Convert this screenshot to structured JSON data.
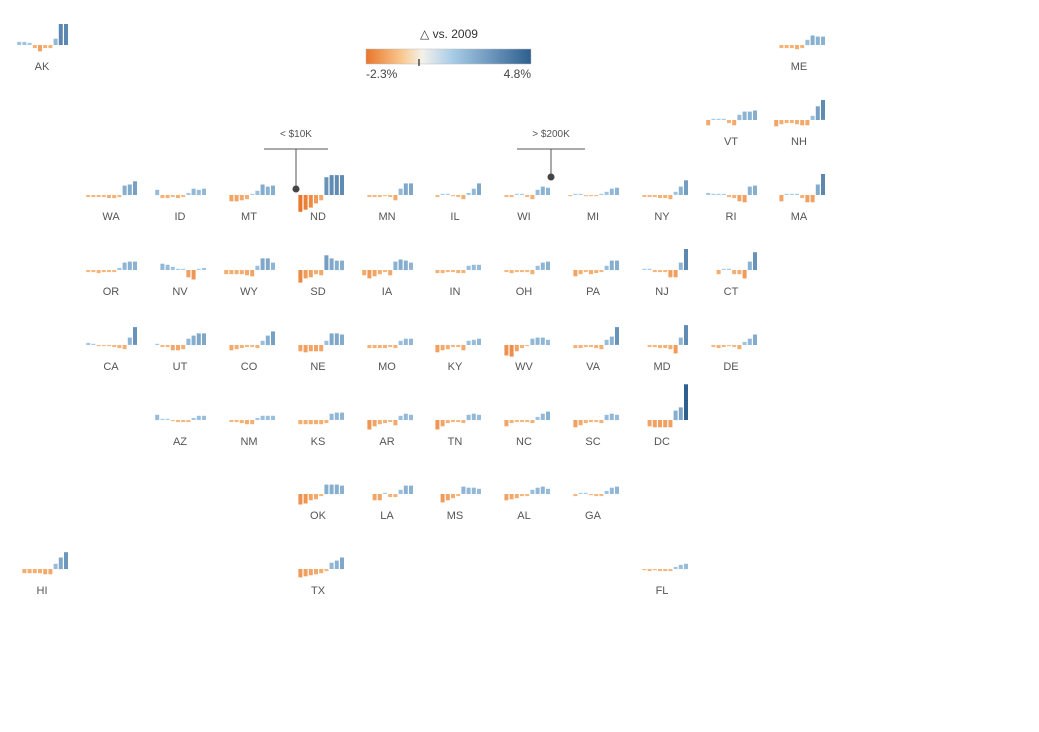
{
  "chart_data": {
    "type": "bar",
    "layout": "tile-grid-map-of-small-multiples",
    "legend": {
      "title": "△ vs. 2009",
      "min_label": "-2.3%",
      "max_label": "4.8%",
      "min": -2.3,
      "max": 4.8,
      "colors": {
        "neg_strong": "#e8762c",
        "neg_light": "#f7c088",
        "pos_light": "#a9cde8",
        "pos_strong": "#2e5f8f"
      },
      "placement": "top-center"
    },
    "annotations": [
      {
        "text": "< $10K",
        "state": "ND"
      },
      {
        "text": "> $200K",
        "state": "WI"
      }
    ],
    "states": [
      {
        "abbr": "AK",
        "values": [
          0.15,
          0.15,
          0.1,
          -0.15,
          -0.3,
          -0.15,
          -0.15,
          0.3,
          1.0,
          1.0
        ]
      },
      {
        "abbr": "ME",
        "values": [
          -0.15,
          -0.15,
          -0.15,
          -0.2,
          -0.15,
          0.25,
          0.45,
          0.4,
          0.4
        ]
      },
      {
        "abbr": "VT",
        "values": [
          -0.25,
          0,
          0,
          0,
          -0.15,
          -0.25,
          0.25,
          0.4,
          0.4,
          0.45
        ]
      },
      {
        "abbr": "NH",
        "values": [
          -0.3,
          -0.2,
          -0.15,
          -0.15,
          -0.2,
          -0.25,
          -0.25,
          0.2,
          0.65,
          0.95
        ]
      },
      {
        "abbr": "WA",
        "values": [
          -0.1,
          -0.1,
          -0.1,
          -0.1,
          -0.15,
          -0.15,
          -0.1,
          0.45,
          0.5,
          0.65
        ]
      },
      {
        "abbr": "ID",
        "values": [
          0.25,
          -0.15,
          -0.15,
          -0.1,
          -0.15,
          -0.1,
          0.1,
          0.3,
          0.25,
          0.3
        ]
      },
      {
        "abbr": "MT",
        "values": [
          -0.3,
          -0.3,
          -0.25,
          -0.2,
          0,
          0.2,
          0.5,
          0.4,
          0.45
        ]
      },
      {
        "abbr": "ND",
        "values": [
          -0.8,
          -0.7,
          -0.6,
          -0.4,
          -0.25,
          0.85,
          0.95,
          0.95,
          0.95
        ]
      },
      {
        "abbr": "MN",
        "values": [
          -0.1,
          -0.1,
          -0.1,
          -0.05,
          -0.1,
          -0.25,
          0.3,
          0.55,
          0.55
        ]
      },
      {
        "abbr": "IL",
        "values": [
          -0.1,
          0,
          0,
          -0.05,
          -0.1,
          -0.2,
          0.1,
          0.3,
          0.55
        ]
      },
      {
        "abbr": "WI",
        "values": [
          -0.1,
          -0.1,
          0,
          0,
          -0.1,
          -0.2,
          0.25,
          0.4,
          0.35
        ]
      },
      {
        "abbr": "MI",
        "values": [
          -0.05,
          0,
          0,
          -0.05,
          -0.05,
          -0.05,
          0,
          0.15,
          0.3,
          0.35
        ]
      },
      {
        "abbr": "NY",
        "values": [
          -0.1,
          -0.1,
          -0.1,
          -0.15,
          -0.15,
          -0.2,
          0.15,
          0.4,
          0.7
        ]
      },
      {
        "abbr": "RI",
        "values": [
          0.1,
          0.05,
          0,
          0,
          -0.1,
          -0.15,
          -0.3,
          -0.35,
          0.4,
          0.45
        ]
      },
      {
        "abbr": "MA",
        "values": [
          -0.3,
          0,
          0,
          0,
          -0.15,
          -0.35,
          -0.35,
          0.5,
          1.0
        ]
      },
      {
        "abbr": "OR",
        "values": [
          -0.1,
          -0.1,
          -0.15,
          -0.1,
          -0.1,
          -0.1,
          0.1,
          0.35,
          0.4,
          0.4
        ]
      },
      {
        "abbr": "NV",
        "values": [
          0.3,
          0.25,
          0.15,
          0,
          0,
          -0.35,
          -0.45,
          0,
          0.1
        ]
      },
      {
        "abbr": "WY",
        "values": [
          -0.2,
          -0.2,
          -0.2,
          -0.2,
          -0.25,
          -0.3,
          0.2,
          0.55,
          0.55,
          0.35
        ]
      },
      {
        "abbr": "SD",
        "values": [
          -0.6,
          -0.4,
          -0.35,
          -0.2,
          -0.25,
          0.7,
          0.55,
          0.45,
          0.45
        ]
      },
      {
        "abbr": "IA",
        "values": [
          -0.25,
          -0.4,
          -0.3,
          -0.2,
          -0.1,
          -0.25,
          0.4,
          0.5,
          0.45,
          0.35
        ]
      },
      {
        "abbr": "IN",
        "values": [
          -0.15,
          -0.15,
          -0.1,
          -0.1,
          -0.15,
          -0.15,
          0.2,
          0.25,
          0.25
        ]
      },
      {
        "abbr": "OH",
        "values": [
          -0.1,
          -0.15,
          -0.1,
          -0.1,
          -0.1,
          -0.2,
          0.2,
          0.35,
          0.4
        ]
      },
      {
        "abbr": "PA",
        "values": [
          -0.3,
          -0.2,
          -0.1,
          -0.2,
          -0.15,
          -0.1,
          0.2,
          0.45,
          0.45
        ]
      },
      {
        "abbr": "NJ",
        "values": [
          0,
          0,
          -0.1,
          -0.1,
          -0.1,
          -0.35,
          -0.35,
          0.35,
          1.0
        ]
      },
      {
        "abbr": "CT",
        "values": [
          -0.2,
          0,
          0,
          -0.2,
          -0.2,
          -0.4,
          0.4,
          0.85
        ]
      },
      {
        "abbr": "CA",
        "values": [
          0.1,
          0,
          -0.05,
          -0.05,
          -0.05,
          -0.1,
          -0.15,
          -0.2,
          0.35,
          0.85
        ]
      },
      {
        "abbr": "UT",
        "values": [
          0.05,
          -0.1,
          -0.1,
          -0.25,
          -0.25,
          -0.2,
          0.3,
          0.45,
          0.55,
          0.55
        ]
      },
      {
        "abbr": "CO",
        "values": [
          -0.25,
          -0.2,
          -0.15,
          -0.1,
          -0.1,
          -0.15,
          0.2,
          0.45,
          0.65
        ]
      },
      {
        "abbr": "NE",
        "values": [
          -0.3,
          -0.35,
          -0.3,
          -0.3,
          -0.3,
          0.2,
          0.55,
          0.55,
          0.5
        ]
      },
      {
        "abbr": "MO",
        "values": [
          -0.15,
          -0.15,
          -0.15,
          -0.15,
          -0.1,
          -0.15,
          0.2,
          0.3,
          0.3
        ]
      },
      {
        "abbr": "KY",
        "values": [
          -0.35,
          -0.25,
          -0.2,
          -0.1,
          -0.1,
          -0.25,
          0.2,
          0.25,
          0.3
        ]
      },
      {
        "abbr": "WV",
        "values": [
          -0.5,
          -0.55,
          -0.3,
          -0.15,
          -0.05,
          0.3,
          0.35,
          0.35,
          0.25
        ]
      },
      {
        "abbr": "VA",
        "values": [
          -0.15,
          -0.15,
          -0.1,
          -0.1,
          -0.15,
          -0.2,
          0.25,
          0.4,
          0.85
        ]
      },
      {
        "abbr": "MD",
        "values": [
          -0.1,
          -0.1,
          -0.15,
          -0.15,
          -0.2,
          -0.4,
          0.35,
          0.95
        ]
      },
      {
        "abbr": "DE",
        "values": [
          -0.1,
          -0.15,
          -0.1,
          -0.05,
          -0.1,
          -0.2,
          0.15,
          0.3,
          0.5
        ]
      },
      {
        "abbr": "AZ",
        "values": [
          0.25,
          0,
          0,
          -0.05,
          -0.1,
          -0.1,
          -0.1,
          0.1,
          0.2,
          0.2
        ]
      },
      {
        "abbr": "NM",
        "values": [
          -0.1,
          -0.1,
          -0.15,
          -0.2,
          -0.2,
          0.1,
          0.2,
          0.2,
          0.2
        ]
      },
      {
        "abbr": "KS",
        "values": [
          -0.2,
          -0.2,
          -0.2,
          -0.2,
          -0.2,
          -0.15,
          0.3,
          0.35,
          0.35
        ]
      },
      {
        "abbr": "AR",
        "values": [
          -0.45,
          -0.3,
          -0.2,
          -0.15,
          -0.1,
          -0.25,
          0.2,
          0.3,
          0.25
        ]
      },
      {
        "abbr": "TN",
        "values": [
          -0.45,
          -0.3,
          -0.15,
          -0.1,
          -0.1,
          -0.15,
          0.25,
          0.3,
          0.25
        ]
      },
      {
        "abbr": "NC",
        "values": [
          -0.3,
          -0.15,
          -0.1,
          -0.1,
          -0.1,
          -0.15,
          0.15,
          0.3,
          0.4
        ]
      },
      {
        "abbr": "SC",
        "values": [
          -0.35,
          -0.25,
          -0.15,
          -0.1,
          -0.1,
          -0.15,
          0.25,
          0.3,
          0.25
        ]
      },
      {
        "abbr": "DC",
        "values": [
          -0.3,
          -0.35,
          -0.35,
          -0.35,
          -0.35,
          0.45,
          0.6,
          1.7
        ]
      },
      {
        "abbr": "OK",
        "values": [
          -0.5,
          -0.45,
          -0.3,
          -0.25,
          -0.1,
          0.45,
          0.45,
          0.45,
          0.4
        ]
      },
      {
        "abbr": "LA",
        "values": [
          -0.3,
          -0.3,
          0,
          -0.15,
          -0.15,
          0.2,
          0.4,
          0.4
        ]
      },
      {
        "abbr": "MS",
        "values": [
          -0.4,
          -0.3,
          -0.2,
          -0.1,
          0.35,
          0.3,
          0.3,
          0.25
        ]
      },
      {
        "abbr": "AL",
        "values": [
          -0.3,
          -0.25,
          -0.2,
          -0.1,
          -0.1,
          0.2,
          0.3,
          0.35,
          0.25
        ]
      },
      {
        "abbr": "GA",
        "values": [
          -0.1,
          0,
          0,
          -0.05,
          -0.1,
          -0.1,
          0.15,
          0.3,
          0.35
        ]
      },
      {
        "abbr": "HI",
        "values": [
          -0.2,
          -0.2,
          -0.2,
          -0.2,
          -0.25,
          -0.25,
          0.25,
          0.55,
          0.8
        ]
      },
      {
        "abbr": "TX",
        "values": [
          -0.4,
          -0.35,
          -0.3,
          -0.25,
          -0.2,
          -0.1,
          0.3,
          0.4,
          0.55
        ]
      },
      {
        "abbr": "FL",
        "values": [
          -0.05,
          -0.1,
          -0.05,
          -0.1,
          -0.1,
          -0.1,
          0.1,
          0.2,
          0.25
        ]
      }
    ]
  }
}
